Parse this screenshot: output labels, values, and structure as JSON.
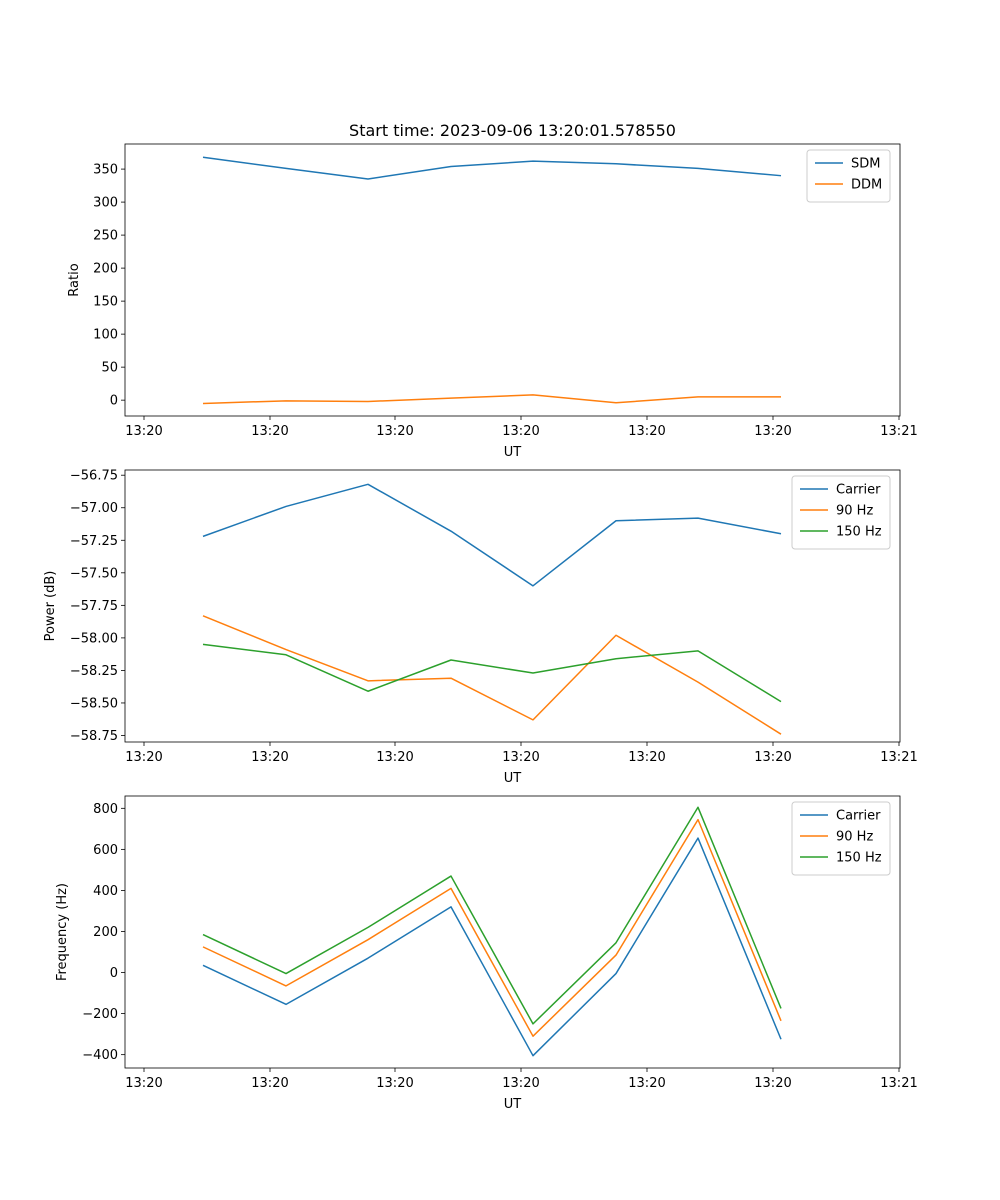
{
  "chart_data": [
    {
      "type": "line",
      "title": "Start time: 2023-09-06 13:20:01.578550",
      "xlabel": "UT",
      "ylabel": "Ratio",
      "x_tick_labels": [
        "13:20",
        "13:20",
        "13:20",
        "13:20",
        "13:20",
        "13:20",
        "13:21"
      ],
      "ylim": [
        -24,
        388
      ],
      "yticks": [
        0,
        50,
        100,
        150,
        200,
        250,
        300,
        350
      ],
      "ytick_labels": [
        "0",
        "50",
        "100",
        "150",
        "200",
        "250",
        "300",
        "350"
      ],
      "legend": "top-right",
      "series": [
        {
          "name": "SDM",
          "color": "#1f77b4",
          "values": [
            368,
            351,
            335,
            354,
            362,
            358,
            351,
            340
          ]
        },
        {
          "name": "DDM",
          "color": "#ff7f0e",
          "values": [
            -5,
            -1,
            -2,
            3,
            8,
            -4,
            5,
            5
          ]
        }
      ]
    },
    {
      "type": "line",
      "title": "",
      "xlabel": "UT",
      "ylabel": "Power (dB)",
      "x_tick_labels": [
        "13:20",
        "13:20",
        "13:20",
        "13:20",
        "13:20",
        "13:20",
        "13:21"
      ],
      "ylim": [
        -58.8,
        -56.71
      ],
      "yticks": [
        -58.75,
        -58.5,
        -58.25,
        -58.0,
        -57.75,
        -57.5,
        -57.25,
        -57.0,
        -56.75
      ],
      "ytick_labels": [
        "−58.75",
        "−58.50",
        "−58.25",
        "−58.00",
        "−57.75",
        "−57.50",
        "−57.25",
        "−57.00",
        "−56.75"
      ],
      "legend": "top-right",
      "series": [
        {
          "name": "Carrier",
          "color": "#1f77b4",
          "values": [
            -57.22,
            -56.99,
            -56.82,
            -57.18,
            -57.6,
            -57.1,
            -57.08,
            -57.2
          ]
        },
        {
          "name": "90 Hz",
          "color": "#ff7f0e",
          "values": [
            -57.83,
            -58.09,
            -58.33,
            -58.31,
            -58.63,
            -57.98,
            -58.34,
            -58.74
          ]
        },
        {
          "name": "150 Hz",
          "color": "#2ca02c",
          "values": [
            -58.05,
            -58.13,
            -58.41,
            -58.17,
            -58.27,
            -58.16,
            -58.1,
            -58.49
          ]
        }
      ]
    },
    {
      "type": "line",
      "title": "",
      "xlabel": "UT",
      "ylabel": "Frequency (Hz)",
      "x_tick_labels": [
        "13:20",
        "13:20",
        "13:20",
        "13:20",
        "13:20",
        "13:20",
        "13:21"
      ],
      "ylim": [
        -465,
        860
      ],
      "yticks": [
        -400,
        -200,
        0,
        200,
        400,
        600,
        800
      ],
      "ytick_labels": [
        "−400",
        "−200",
        "0",
        "200",
        "400",
        "600",
        "800"
      ],
      "legend": "top-right",
      "series": [
        {
          "name": "Carrier",
          "color": "#1f77b4",
          "values": [
            35,
            -155,
            70,
            320,
            -405,
            -5,
            655,
            -325
          ]
        },
        {
          "name": "90 Hz",
          "color": "#ff7f0e",
          "values": [
            125,
            -65,
            160,
            410,
            -310,
            85,
            745,
            -235
          ]
        },
        {
          "name": "150 Hz",
          "color": "#2ca02c",
          "values": [
            185,
            -5,
            220,
            470,
            -250,
            145,
            805,
            -175
          ]
        }
      ]
    }
  ]
}
